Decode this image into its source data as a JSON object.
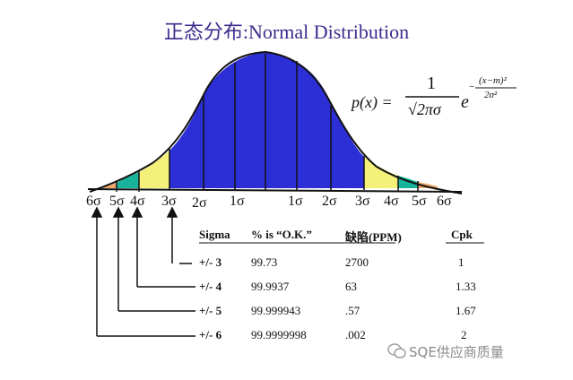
{
  "title": "正态分布:Normal Distribution",
  "formula": {
    "lhs": "p(x) =",
    "numerator": "1",
    "denominator": "√2πσ",
    "base": "e",
    "exp_numerator": "(x−m)²",
    "exp_denominator": "2σ²",
    "exp_sign": "−"
  },
  "axis_labels": [
    "6σ",
    "5σ",
    "4σ",
    "3σ",
    "2σ",
    "1σ",
    "1σ",
    "2σ",
    "3σ",
    "4σ",
    "5σ",
    "6σ"
  ],
  "table": {
    "headers": [
      "Sigma",
      "% is “O.K.”",
      "缺陷(PPM)",
      "Cpk"
    ],
    "rows": [
      {
        "sigma": "+/- 3",
        "ok": "99.73",
        "ppm": "2700",
        "cpk": "1"
      },
      {
        "sigma": "+/- 4",
        "ok": "99.9937",
        "ppm": "63",
        "cpk": "1.33"
      },
      {
        "sigma": "+/- 5",
        "ok": "99.999943",
        "ppm": ".57",
        "cpk": "1.67"
      },
      {
        "sigma": "+/- 6",
        "ok": "99.9999998",
        "ppm": ".002",
        "cpk": "2"
      }
    ]
  },
  "colors": {
    "core": "#2d2fd6",
    "band_3_4": "#f4f07a",
    "band_4_5": "#17b39a",
    "band_5_6": "#f2a86a",
    "title": "#3a2e8c"
  },
  "watermark": "SQE供应商质量"
}
